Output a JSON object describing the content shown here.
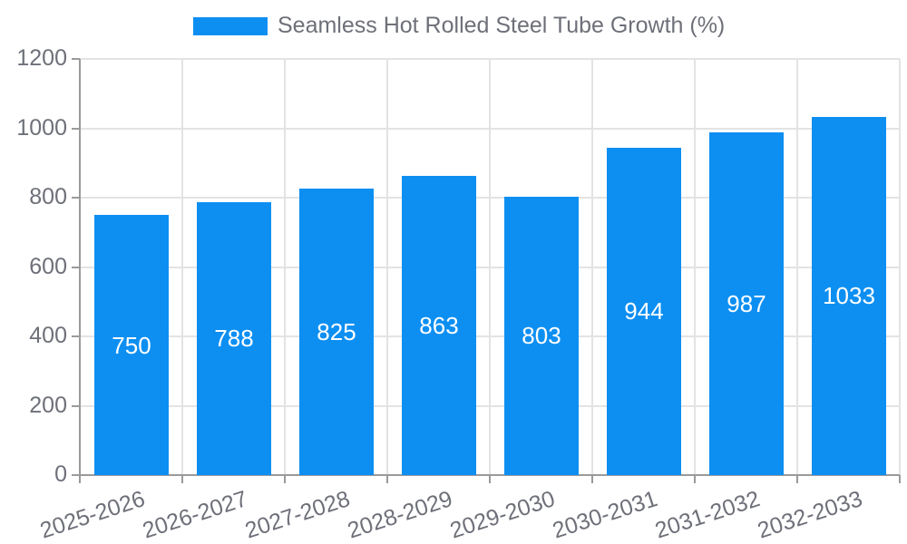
{
  "chart_data": {
    "type": "bar",
    "title": "",
    "legend": {
      "label": "Seamless Hot Rolled Steel Tube Growth (%)",
      "position": "top-center"
    },
    "categories": [
      "2025-2026",
      "2026-2027",
      "2027-2028",
      "2028-2029",
      "2029-2030",
      "2030-2031",
      "2031-2032",
      "2032-2033"
    ],
    "values": [
      750,
      788,
      825,
      863,
      803,
      944,
      987,
      1033
    ],
    "xlabel": "",
    "ylabel": "",
    "ylim": [
      0,
      1200
    ],
    "yticks": [
      0,
      200,
      400,
      600,
      800,
      1000,
      1200
    ],
    "grid": true,
    "bar_color": "#0d8ff2",
    "value_label_color": "#ffffff",
    "grid_color": "#e3e3e3",
    "axis_color": "#9a9a9a",
    "tick_label_color": "#6e7079"
  }
}
